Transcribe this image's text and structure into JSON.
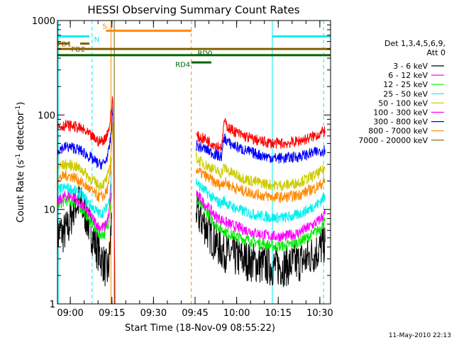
{
  "chart_data": {
    "type": "line",
    "title": "HESSI Observing Summary Count Rates",
    "xlabel": "Start Time (18-Nov-09 08:55:22)",
    "ylabel_main": "Count Rate (s",
    "ylabel_sup1": "-1",
    "ylabel_mid": " detector",
    "ylabel_sup2": "-1",
    "ylabel_end": ")",
    "timestamp": "11-May-2010 22:13",
    "yscale": "log",
    "ylim": [
      1,
      1000
    ],
    "xlim_minutes": [
      0,
      98.5
    ],
    "xtick_labels": [
      "09:00",
      "09:15",
      "09:30",
      "09:45",
      "10:00",
      "10:15",
      "10:30"
    ],
    "xtick_minutes": [
      4.633,
      19.633,
      34.633,
      49.633,
      64.633,
      79.633,
      94.633
    ],
    "ytick_labels": [
      "1",
      "10",
      "100",
      "1000"
    ],
    "ytick_values": [
      1,
      10,
      100,
      1000
    ],
    "legend": {
      "header1": "Det 1,3,4,5,6,9,",
      "header2": "Att 0",
      "placement": "right",
      "entries": [
        {
          "label": "3 - 6 keV",
          "color": "#000000"
        },
        {
          "label": "6 - 12 keV",
          "color": "#ff00ff"
        },
        {
          "label": "12 - 25 keV",
          "color": "#00ee00"
        },
        {
          "label": "25 - 50 keV",
          "color": "#00eeee"
        },
        {
          "label": "50 - 100 keV",
          "color": "#cccc00"
        },
        {
          "label": "100 - 300 keV",
          "color": "#ff00ff"
        },
        {
          "label": "300 - 800 keV",
          "color": "#0000ff"
        },
        {
          "label": "800 - 7000 keV",
          "color": "#ff8800"
        },
        {
          "label": "7000 - 20000 keV",
          "color": "#806000"
        }
      ]
    },
    "series": [
      {
        "color": "#ff0000",
        "segments": [
          {
            "x": [
              0,
              3,
              6,
              9,
              12,
              15,
              17,
              18.5,
              19.5,
              20,
              20.8
            ],
            "y": [
              75,
              78,
              76,
              70,
              60,
              52,
              55,
              70,
              110,
              170,
              0
            ]
          },
          {
            "x": [
              50,
              51,
              53,
              55,
              57,
              59,
              59.5,
              60,
              62,
              66,
              70,
              74,
              78,
              82,
              86,
              90,
              94,
              96.5
            ],
            "y": [
              60,
              58,
              56,
              52,
              48,
              46,
              50,
              85,
              72,
              62,
              56,
              52,
              50,
              50,
              52,
              56,
              62,
              68
            ]
          }
        ]
      },
      {
        "color": "#0000ff",
        "segments": [
          {
            "x": [
              0,
              3,
              6,
              9,
              12,
              15,
              17,
              18.5,
              19.5,
              20
            ],
            "y": [
              43,
              46,
              45,
              41,
              35,
              30,
              31,
              40,
              70,
              120
            ]
          },
          {
            "x": [
              50,
              51,
              53,
              55,
              57,
              59,
              59.5,
              60,
              62,
              66,
              70,
              74,
              78,
              82,
              86,
              90,
              94,
              96.5
            ],
            "y": [
              48,
              46,
              44,
              41,
              38,
              36,
              40,
              58,
              50,
              44,
              40,
              37,
              35,
              35,
              36,
              38,
              41,
              43
            ]
          }
        ]
      },
      {
        "color": "#cccc00",
        "segments": [
          {
            "x": [
              0,
              3,
              6,
              9,
              12,
              15,
              17,
              18.5,
              19.5,
              20
            ],
            "y": [
              28,
              30,
              29,
              26,
              21,
              18,
              19,
              24,
              45,
              80
            ]
          },
          {
            "x": [
              50,
              51,
              53,
              55,
              57,
              59,
              60,
              62,
              66,
              70,
              74,
              78,
              82,
              86,
              90,
              94,
              96.5
            ],
            "y": [
              36,
              33,
              30,
              28,
              26,
              24,
              28,
              25,
              22,
              20,
              19,
              18,
              18,
              19,
              21,
              24,
              27
            ]
          }
        ]
      },
      {
        "color": "#ff8800",
        "segments": [
          {
            "x": [
              0,
              3,
              6,
              9,
              12,
              15,
              17,
              18.5,
              19.5
            ],
            "y": [
              21,
              23,
              22,
              19,
              16,
              13.5,
              14,
              18,
              35
            ]
          },
          {
            "x": [
              50,
              51,
              53,
              55,
              57,
              59,
              60,
              62,
              66,
              70,
              74,
              78,
              82,
              86,
              90,
              94,
              96.5
            ],
            "y": [
              27,
              25,
              23,
              21,
              19,
              18,
              20,
              18,
              16,
              15,
              14,
              13.5,
              13.5,
              14,
              15.5,
              17.5,
              20
            ]
          }
        ]
      },
      {
        "color": "#00eeee",
        "segments": [
          {
            "x": [
              0,
              3,
              6,
              9,
              12,
              15,
              17,
              18.5,
              19.5
            ],
            "y": [
              16,
              17,
              16,
              14,
              11,
              9,
              9.5,
              12,
              25
            ]
          },
          {
            "x": [
              50,
              51,
              53,
              55,
              57,
              59,
              60,
              62,
              66,
              70,
              74,
              78,
              82,
              86,
              90,
              94,
              96.5
            ],
            "y": [
              20,
              18,
              16,
              14,
              12.5,
              11.5,
              12.5,
              11,
              9.8,
              9,
              8.5,
              8.2,
              8.2,
              8.6,
              9.8,
              11.5,
              14
            ]
          }
        ]
      },
      {
        "color": "#ff00ff",
        "segments": [
          {
            "x": [
              0,
              3,
              6,
              9,
              12,
              15,
              17,
              18.5,
              19.5
            ],
            "y": [
              12,
              14,
              13.5,
              11,
              8.5,
              6.5,
              6.5,
              8.5,
              18
            ]
          },
          {
            "x": [
              50,
              51,
              53,
              55,
              57,
              59,
              62,
              66,
              70,
              74,
              78,
              82,
              86,
              90,
              94,
              96.5
            ],
            "y": [
              15,
              13.5,
              11.5,
              10,
              8.5,
              7.8,
              7,
              6.3,
              5.8,
              5.4,
              5.2,
              5.2,
              5.5,
              6.3,
              7.5,
              9
            ]
          }
        ]
      },
      {
        "color": "#00ee00",
        "segments": [
          {
            "x": [
              0,
              3,
              6,
              9,
              12,
              15,
              17,
              18.5,
              19.5
            ],
            "y": [
              11,
              12.5,
              12,
              10,
              7.5,
              5.5,
              5.5,
              7.5,
              15
            ]
          },
          {
            "x": [
              50,
              51,
              53,
              55,
              57,
              59,
              62,
              66,
              70,
              74,
              78,
              82,
              86,
              90,
              94,
              96.5
            ],
            "y": [
              13,
              11.5,
              10,
              8.5,
              7,
              6.2,
              5.5,
              5,
              4.6,
              4.3,
              4.1,
              4.1,
              4.4,
              5,
              6,
              7.5
            ]
          }
        ]
      },
      {
        "color": "#000000",
        "segments": [
          {
            "x": [
              0,
              1,
              2,
              3,
              4,
              6,
              8,
              10,
              12,
              14,
              16,
              17,
              18,
              18.5,
              19,
              19.5
            ],
            "y": [
              5,
              6,
              5.5,
              6,
              6.5,
              11,
              12,
              9,
              6,
              4,
              3,
              2.5,
              2.2,
              2.5,
              4,
              8
            ]
          },
          {
            "x": [
              50,
              51,
              53,
              55,
              57,
              59,
              62,
              66,
              70,
              74,
              78,
              82,
              86,
              90,
              94,
              96.5
            ],
            "y": [
              10,
              8.5,
              7,
              5.5,
              4.5,
              3.8,
              3.3,
              3,
              2.8,
              2.6,
              2.5,
              2.5,
              2.7,
              3,
              3.7,
              4.5
            ]
          }
        ]
      }
    ],
    "vertical_markers": [
      {
        "x": 0.3,
        "color": "#00eeee",
        "style": "solid"
      },
      {
        "x": 12.5,
        "color": "#00eeee",
        "style": "dashed"
      },
      {
        "x": 19.3,
        "color": "#ff8800",
        "style": "solid"
      },
      {
        "x": 20.5,
        "color": "#806000",
        "style": "solid"
      },
      {
        "x": 48.3,
        "color": "#ff8800",
        "style": "dashed"
      },
      {
        "x": 77.5,
        "color": "#00eeee",
        "style": "solid"
      },
      {
        "x": 96.0,
        "color": "#00eeee",
        "style": "dashed"
      }
    ],
    "flag_bars": [
      {
        "label": "N",
        "color": "#00eeee",
        "y": 680,
        "segments": [
          [
            0,
            11.5
          ],
          [
            77.5,
            98.5
          ]
        ],
        "label_x": 13.2,
        "label_y": 640
      },
      {
        "label": "S",
        "color": "#ff8800",
        "y": 780,
        "segments": [
          [
            17.5,
            48.3
          ]
        ],
        "label_x": 16.2,
        "label_y": 880
      },
      {
        "label": "FD1",
        "color": "#806000",
        "y": 570,
        "segments": [
          [
            0,
            4.5
          ],
          [
            8.2,
            11.5
          ]
        ],
        "label_x": 0,
        "label_y": 570
      },
      {
        "label": "FD2",
        "color": "#806000",
        "y": 500,
        "segments": [
          [
            0,
            98.5
          ]
        ],
        "label_x": 5,
        "label_y": 500
      },
      {
        "label": "RD0",
        "color": "#006600",
        "y": 430,
        "segments": [
          [
            0,
            98.5
          ]
        ],
        "label_x": 50.5,
        "label_y": 455
      },
      {
        "label": "RD4",
        "color": "#006600",
        "y": 360,
        "segments": [
          [
            48.3,
            55.5
          ]
        ],
        "label_x": 42.5,
        "label_y": 345
      }
    ]
  }
}
